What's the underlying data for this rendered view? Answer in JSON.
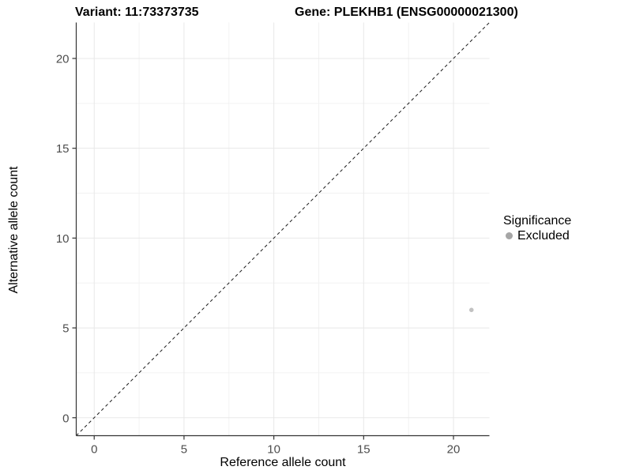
{
  "titles": {
    "variant": "Variant: 11:73373735",
    "gene": "Gene: PLEKHB1 (ENSG00000021300)"
  },
  "chart_data": {
    "type": "scatter",
    "title": "Variant: 11:73373735   Gene: PLEKHB1 (ENSG00000021300)",
    "xlabel": "Reference allele count",
    "ylabel": "Alternative allele count",
    "xlim": [
      -1,
      22
    ],
    "ylim": [
      -1,
      22
    ],
    "x_major_ticks": [
      0,
      5,
      10,
      15,
      20
    ],
    "y_major_ticks": [
      0,
      5,
      10,
      15,
      20
    ],
    "x_minor_ticks": [
      2.5,
      7.5,
      12.5,
      17.5
    ],
    "y_minor_ticks": [
      2.5,
      7.5,
      12.5,
      17.5
    ],
    "grid": "major+minor",
    "series": [
      {
        "name": "Excluded",
        "color": "#c2c2c2",
        "marker_radius": 2.8,
        "points": [
          [
            21,
            6
          ]
        ]
      }
    ],
    "reference_line": {
      "kind": "identity",
      "slope": 1,
      "intercept": 0,
      "style": "dashed",
      "color": "#1a1a1a"
    },
    "legend": {
      "title": "Significance",
      "position": "right",
      "items": [
        {
          "label": "Excluded",
          "color": "#a6a6a6"
        }
      ]
    }
  },
  "colors": {
    "background": "#ffffff",
    "axis_line": "#333333",
    "tick_mark": "#333333",
    "tick_label": "#4d4d4d",
    "grid_major": "#e8e8e8",
    "grid_minor": "#f2f2f2"
  }
}
